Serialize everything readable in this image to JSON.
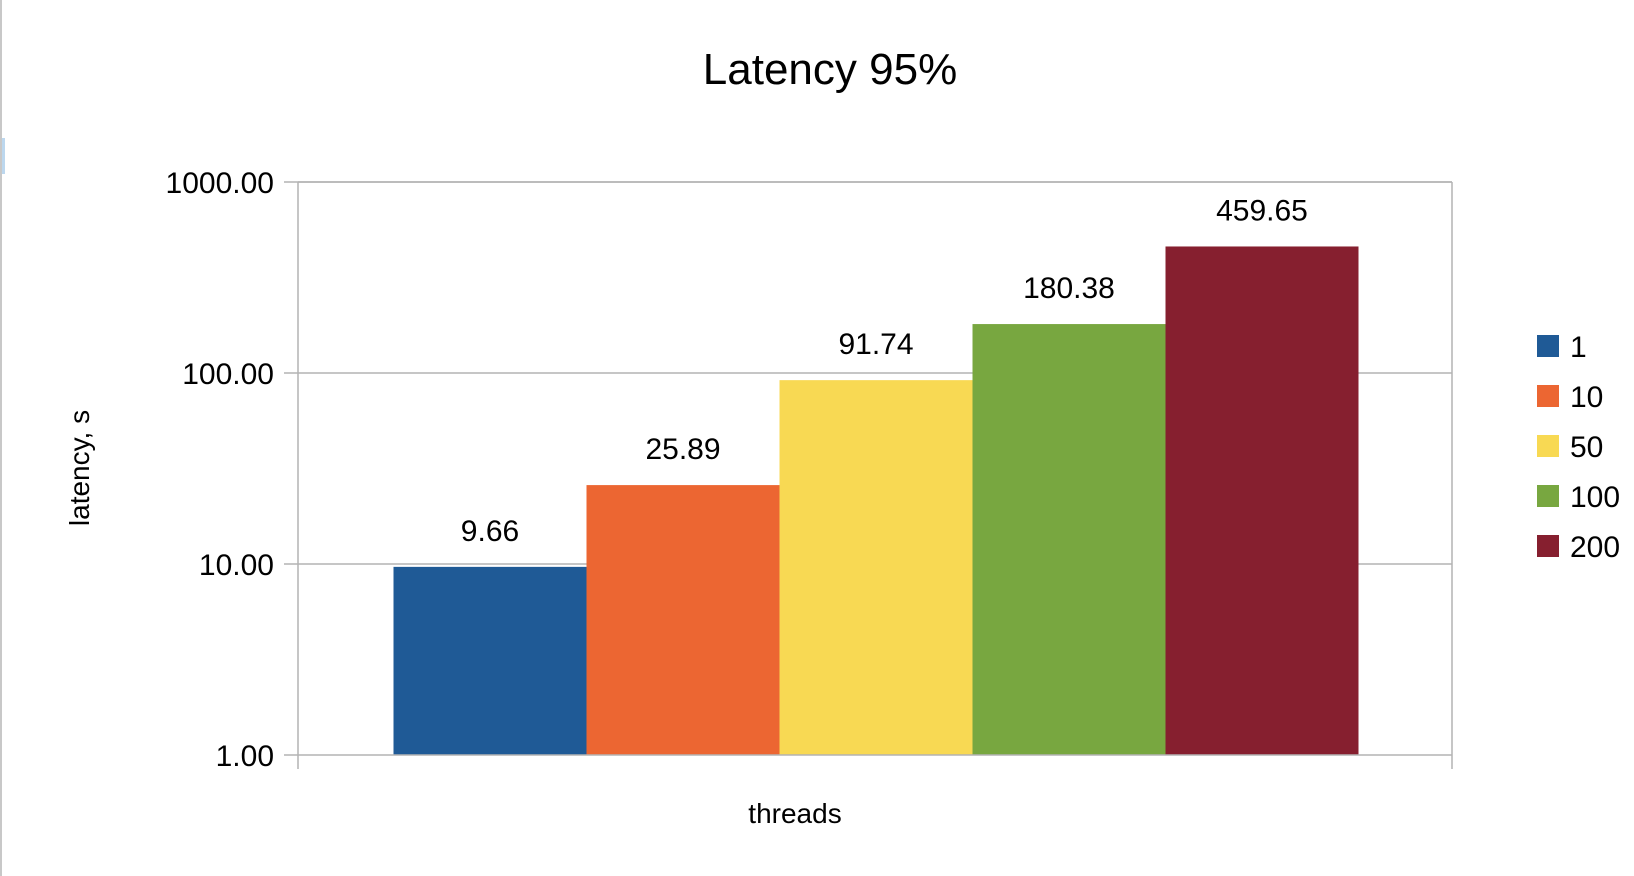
{
  "chart_data": {
    "type": "bar",
    "title": "Latency 95%",
    "xlabel": "threads",
    "ylabel": "latency, s",
    "yscale": "log",
    "ylim": [
      1,
      1000
    ],
    "yticks": [
      1,
      10,
      100,
      1000
    ],
    "ytick_labels": [
      "1.00",
      "10.00",
      "100.00",
      "1000.00"
    ],
    "grid": true,
    "legend_position": "right",
    "series": [
      {
        "name": "1",
        "value": 9.66,
        "label": "9.66",
        "color": "#1f5a96"
      },
      {
        "name": "10",
        "value": 25.89,
        "label": "25.89",
        "color": "#ec6632"
      },
      {
        "name": "50",
        "value": 91.74,
        "label": "91.74",
        "color": "#f8d953"
      },
      {
        "name": "100",
        "value": 180.38,
        "label": "180.38",
        "color": "#78a740"
      },
      {
        "name": "200",
        "value": 459.65,
        "label": "459.65",
        "color": "#861f2f"
      }
    ]
  }
}
